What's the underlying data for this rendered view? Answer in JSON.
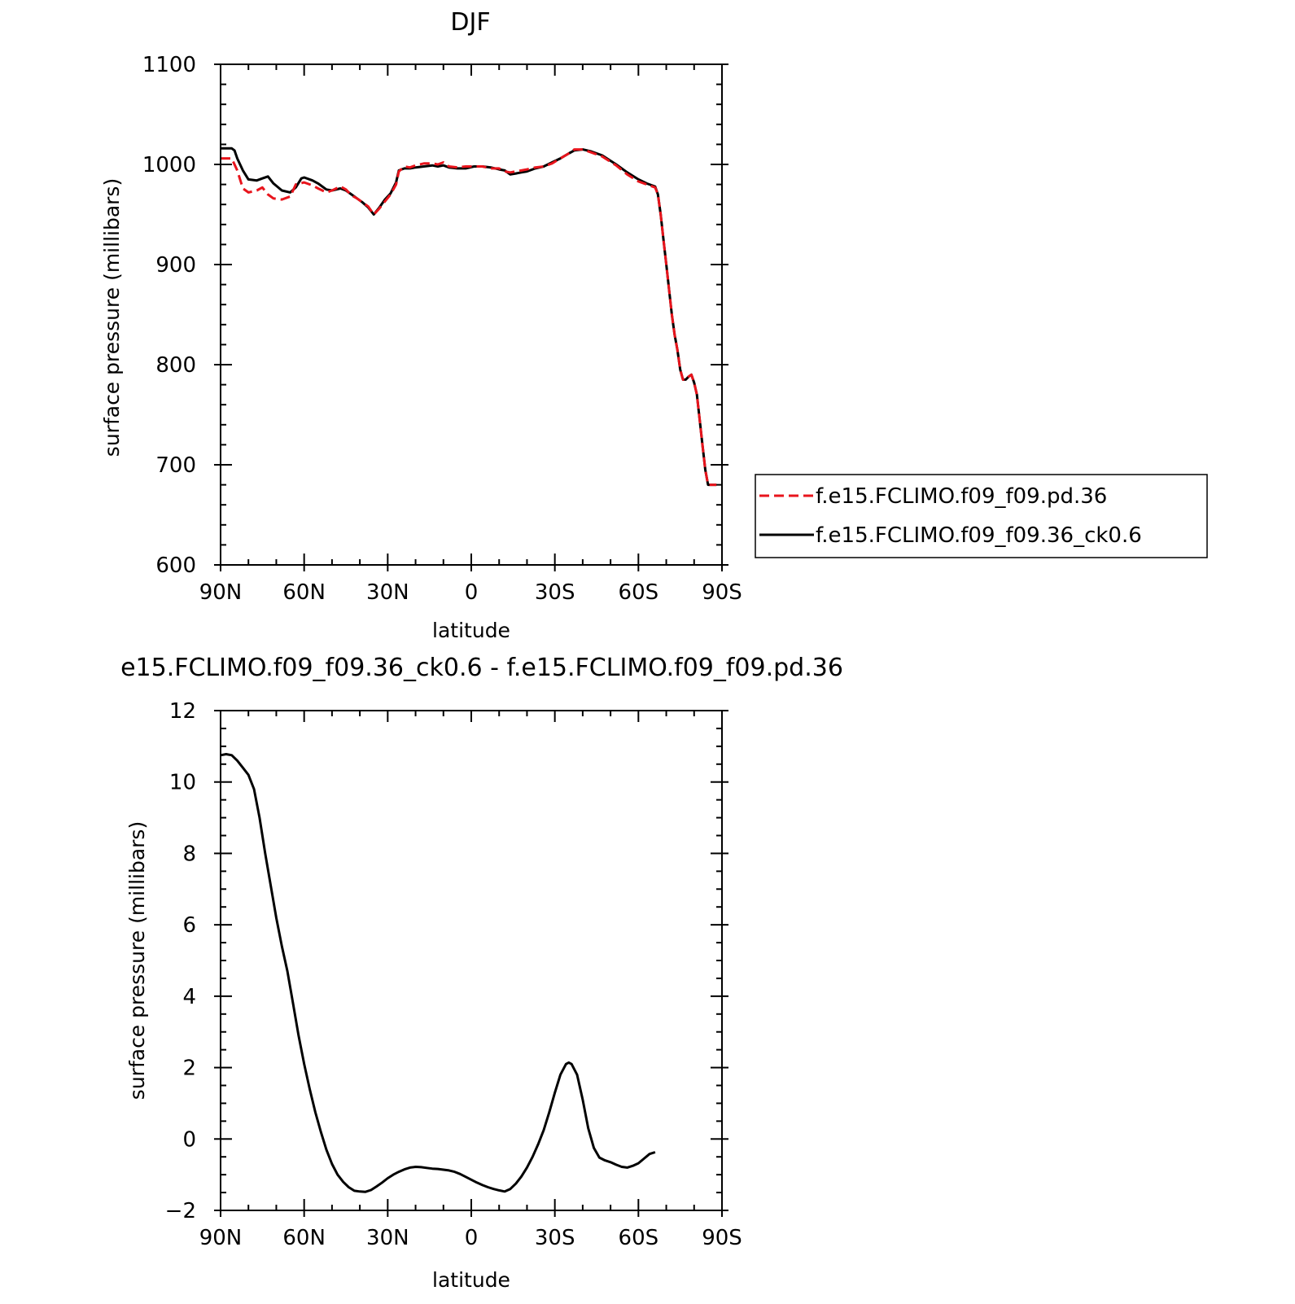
{
  "colors": {
    "axis": "#000000",
    "series_red": "#e8141c",
    "series_black": "#000000"
  },
  "chart_data": [
    {
      "type": "line",
      "title": "DJF",
      "xlabel": "latitude",
      "ylabel": "surface pressure (millibars)",
      "xlim": [
        90,
        -90
      ],
      "ylim": [
        600,
        1100
      ],
      "x_ticks": [
        {
          "value": 90,
          "label": "90N"
        },
        {
          "value": 60,
          "label": "60N"
        },
        {
          "value": 30,
          "label": "30N"
        },
        {
          "value": 0,
          "label": "0"
        },
        {
          "value": -30,
          "label": "30S"
        },
        {
          "value": -60,
          "label": "60S"
        },
        {
          "value": -90,
          "label": "90S"
        }
      ],
      "y_ticks": [
        {
          "value": 600,
          "label": "600"
        },
        {
          "value": 700,
          "label": "700"
        },
        {
          "value": 800,
          "label": "800"
        },
        {
          "value": 900,
          "label": "900"
        },
        {
          "value": 1000,
          "label": "1000"
        },
        {
          "value": 1100,
          "label": "1100"
        }
      ],
      "legend": "right",
      "series": [
        {
          "name": "f.e15.FCLIMO.f09_f09.pd.36",
          "color": "#e8141c",
          "dash": "dashed",
          "points": [
            [
              90,
              1006
            ],
            [
              86,
              1006
            ],
            [
              84,
              994
            ],
            [
              82,
              976
            ],
            [
              80,
              972
            ],
            [
              77,
              974
            ],
            [
              75,
              977
            ],
            [
              73,
              970
            ],
            [
              71,
              966
            ],
            [
              68,
              965
            ],
            [
              65,
              968
            ],
            [
              63,
              980
            ],
            [
              60,
              982
            ],
            [
              57,
              979
            ],
            [
              55,
              976
            ],
            [
              52,
              972
            ],
            [
              50,
              974
            ],
            [
              47,
              978
            ],
            [
              45,
              975
            ],
            [
              43,
              969
            ],
            [
              41,
              966
            ],
            [
              39,
              962
            ],
            [
              37,
              958
            ],
            [
              35,
              950
            ],
            [
              33,
              956
            ],
            [
              31,
              963
            ],
            [
              29,
              970
            ],
            [
              27,
              980
            ],
            [
              26,
              993
            ],
            [
              24,
              998
            ],
            [
              22,
              997
            ],
            [
              20,
              999
            ],
            [
              17,
              1001
            ],
            [
              14,
              1001
            ],
            [
              12,
              1000
            ],
            [
              10,
              1002
            ],
            [
              8,
              998
            ],
            [
              5,
              997
            ],
            [
              2,
              998
            ],
            [
              -1,
              998
            ],
            [
              -4,
              998
            ],
            [
              -7,
              996
            ],
            [
              -10,
              996
            ],
            [
              -12,
              993
            ],
            [
              -14,
              992
            ],
            [
              -16,
              993
            ],
            [
              -18,
              994
            ],
            [
              -20,
              995
            ],
            [
              -23,
              997
            ],
            [
              -26,
              998
            ],
            [
              -29,
              1001
            ],
            [
              -32,
              1006
            ],
            [
              -35,
              1011
            ],
            [
              -37,
              1015
            ],
            [
              -40,
              1015
            ],
            [
              -43,
              1012
            ],
            [
              -47,
              1008
            ],
            [
              -52,
              999
            ],
            [
              -56,
              990
            ],
            [
              -60,
              983
            ],
            [
              -63,
              980
            ],
            [
              -66,
              977
            ],
            [
              -67,
              970
            ],
            [
              -68,
              950
            ],
            [
              -69,
              925
            ],
            [
              -70,
              900
            ],
            [
              -71,
              875
            ],
            [
              -72,
              850
            ],
            [
              -73,
              830
            ],
            [
              -74,
              815
            ],
            [
              -75,
              795
            ],
            [
              -76,
              785
            ],
            [
              -77,
              785
            ],
            [
              -78,
              788
            ],
            [
              -79,
              790
            ],
            [
              -80,
              782
            ],
            [
              -81,
              770
            ],
            [
              -82,
              745
            ],
            [
              -83,
              720
            ],
            [
              -84,
              695
            ],
            [
              -85,
              680
            ],
            [
              -86,
              680
            ],
            [
              -88,
              680
            ]
          ]
        },
        {
          "name": "f.e15.FCLIMO.f09_f09.36_ck0.6",
          "color": "#000000",
          "dash": "solid",
          "points": [
            [
              90,
              1016
            ],
            [
              86,
              1016
            ],
            [
              85,
              1014
            ],
            [
              84,
              1006
            ],
            [
              82,
              994
            ],
            [
              80,
              985
            ],
            [
              77,
              984
            ],
            [
              75,
              986
            ],
            [
              73,
              988
            ],
            [
              71,
              981
            ],
            [
              68,
              974
            ],
            [
              65,
              972
            ],
            [
              63,
              977
            ],
            [
              61,
              986
            ],
            [
              60,
              987
            ],
            [
              57,
              984
            ],
            [
              55,
              981
            ],
            [
              52,
              975
            ],
            [
              50,
              974
            ],
            [
              47,
              976
            ],
            [
              45,
              974
            ],
            [
              43,
              970
            ],
            [
              41,
              966
            ],
            [
              39,
              962
            ],
            [
              37,
              957
            ],
            [
              35,
              950
            ],
            [
              33,
              957
            ],
            [
              31,
              965
            ],
            [
              29,
              971
            ],
            [
              27,
              982
            ],
            [
              26,
              994
            ],
            [
              24,
              996
            ],
            [
              22,
              996
            ],
            [
              20,
              997
            ],
            [
              17,
              998
            ],
            [
              14,
              999
            ],
            [
              12,
              998
            ],
            [
              10,
              999
            ],
            [
              8,
              997
            ],
            [
              5,
              996
            ],
            [
              2,
              996
            ],
            [
              -1,
              998
            ],
            [
              -4,
              998
            ],
            [
              -7,
              997
            ],
            [
              -10,
              995
            ],
            [
              -12,
              994
            ],
            [
              -14,
              990
            ],
            [
              -16,
              991
            ],
            [
              -18,
              992
            ],
            [
              -20,
              993
            ],
            [
              -23,
              996
            ],
            [
              -26,
              998
            ],
            [
              -29,
              1002
            ],
            [
              -32,
              1006
            ],
            [
              -35,
              1011
            ],
            [
              -37,
              1014
            ],
            [
              -40,
              1015
            ],
            [
              -43,
              1013
            ],
            [
              -47,
              1009
            ],
            [
              -52,
              1000
            ],
            [
              -56,
              992
            ],
            [
              -60,
              985
            ],
            [
              -63,
              981
            ],
            [
              -66,
              978
            ],
            [
              -67,
              970
            ],
            [
              -68,
              950
            ],
            [
              -69,
              925
            ],
            [
              -70,
              900
            ],
            [
              -71,
              875
            ],
            [
              -72,
              850
            ],
            [
              -73,
              830
            ],
            [
              -74,
              815
            ],
            [
              -75,
              795
            ],
            [
              -76,
              785
            ],
            [
              -77,
              785
            ],
            [
              -78,
              788
            ],
            [
              -79,
              790
            ],
            [
              -80,
              782
            ],
            [
              -81,
              770
            ],
            [
              -82,
              745
            ],
            [
              -83,
              720
            ],
            [
              -84,
              695
            ],
            [
              -85,
              680
            ],
            [
              -86,
              680
            ],
            [
              -88,
              680
            ]
          ]
        }
      ]
    },
    {
      "type": "line",
      "title": "e15.FCLIMO.f09_f09.36_ck0.6 - f.e15.FCLIMO.f09_f09.pd.36",
      "xlabel": "latitude",
      "ylabel": "surface pressure (millibars)",
      "xlim": [
        90,
        -90
      ],
      "ylim": [
        -2,
        12
      ],
      "x_ticks": [
        {
          "value": 90,
          "label": "90N"
        },
        {
          "value": 60,
          "label": "60N"
        },
        {
          "value": 30,
          "label": "30N"
        },
        {
          "value": 0,
          "label": "0"
        },
        {
          "value": -30,
          "label": "30S"
        },
        {
          "value": -60,
          "label": "60S"
        },
        {
          "value": -90,
          "label": "90S"
        }
      ],
      "y_ticks": [
        {
          "value": -2,
          "label": "−2"
        },
        {
          "value": 0,
          "label": "0"
        },
        {
          "value": 2,
          "label": "2"
        },
        {
          "value": 4,
          "label": "4"
        },
        {
          "value": 6,
          "label": "6"
        },
        {
          "value": 8,
          "label": "8"
        },
        {
          "value": 10,
          "label": "10"
        },
        {
          "value": 12,
          "label": "12"
        }
      ],
      "series": [
        {
          "color": "#000000",
          "dash": "solid",
          "points": [
            [
              90,
              10.75
            ],
            [
              88,
              10.78
            ],
            [
              86,
              10.75
            ],
            [
              84,
              10.6
            ],
            [
              82,
              10.4
            ],
            [
              80,
              10.2
            ],
            [
              78,
              9.8
            ],
            [
              76,
              9.0
            ],
            [
              74,
              8.0
            ],
            [
              72,
              7.1
            ],
            [
              70,
              6.2
            ],
            [
              68,
              5.4
            ],
            [
              66,
              4.7
            ],
            [
              64,
              3.8
            ],
            [
              62,
              2.9
            ],
            [
              60,
              2.1
            ],
            [
              58,
              1.4
            ],
            [
              56,
              0.75
            ],
            [
              54,
              0.2
            ],
            [
              52,
              -0.3
            ],
            [
              50,
              -0.7
            ],
            [
              48,
              -1.0
            ],
            [
              46,
              -1.2
            ],
            [
              44,
              -1.35
            ],
            [
              42,
              -1.45
            ],
            [
              40,
              -1.47
            ],
            [
              38,
              -1.48
            ],
            [
              36,
              -1.43
            ],
            [
              34,
              -1.33
            ],
            [
              32,
              -1.22
            ],
            [
              30,
              -1.1
            ],
            [
              28,
              -1.0
            ],
            [
              26,
              -0.92
            ],
            [
              24,
              -0.85
            ],
            [
              22,
              -0.8
            ],
            [
              20,
              -0.78
            ],
            [
              18,
              -0.79
            ],
            [
              16,
              -0.81
            ],
            [
              14,
              -0.83
            ],
            [
              12,
              -0.84
            ],
            [
              10,
              -0.86
            ],
            [
              8,
              -0.88
            ],
            [
              6,
              -0.92
            ],
            [
              4,
              -0.98
            ],
            [
              2,
              -1.06
            ],
            [
              0,
              -1.14
            ],
            [
              -2,
              -1.22
            ],
            [
              -4,
              -1.29
            ],
            [
              -6,
              -1.35
            ],
            [
              -8,
              -1.4
            ],
            [
              -10,
              -1.44
            ],
            [
              -12,
              -1.47
            ],
            [
              -14,
              -1.4
            ],
            [
              -16,
              -1.25
            ],
            [
              -18,
              -1.05
            ],
            [
              -20,
              -0.8
            ],
            [
              -22,
              -0.5
            ],
            [
              -24,
              -0.15
            ],
            [
              -26,
              0.25
            ],
            [
              -28,
              0.75
            ],
            [
              -30,
              1.3
            ],
            [
              -32,
              1.8
            ],
            [
              -34,
              2.1
            ],
            [
              -35,
              2.14
            ],
            [
              -36,
              2.1
            ],
            [
              -38,
              1.8
            ],
            [
              -40,
              1.1
            ],
            [
              -42,
              0.3
            ],
            [
              -44,
              -0.25
            ],
            [
              -46,
              -0.52
            ],
            [
              -48,
              -0.6
            ],
            [
              -50,
              -0.65
            ],
            [
              -52,
              -0.72
            ],
            [
              -54,
              -0.78
            ],
            [
              -56,
              -0.8
            ],
            [
              -58,
              -0.75
            ],
            [
              -60,
              -0.68
            ],
            [
              -62,
              -0.55
            ],
            [
              -64,
              -0.42
            ],
            [
              -66,
              -0.37
            ]
          ]
        }
      ]
    }
  ]
}
